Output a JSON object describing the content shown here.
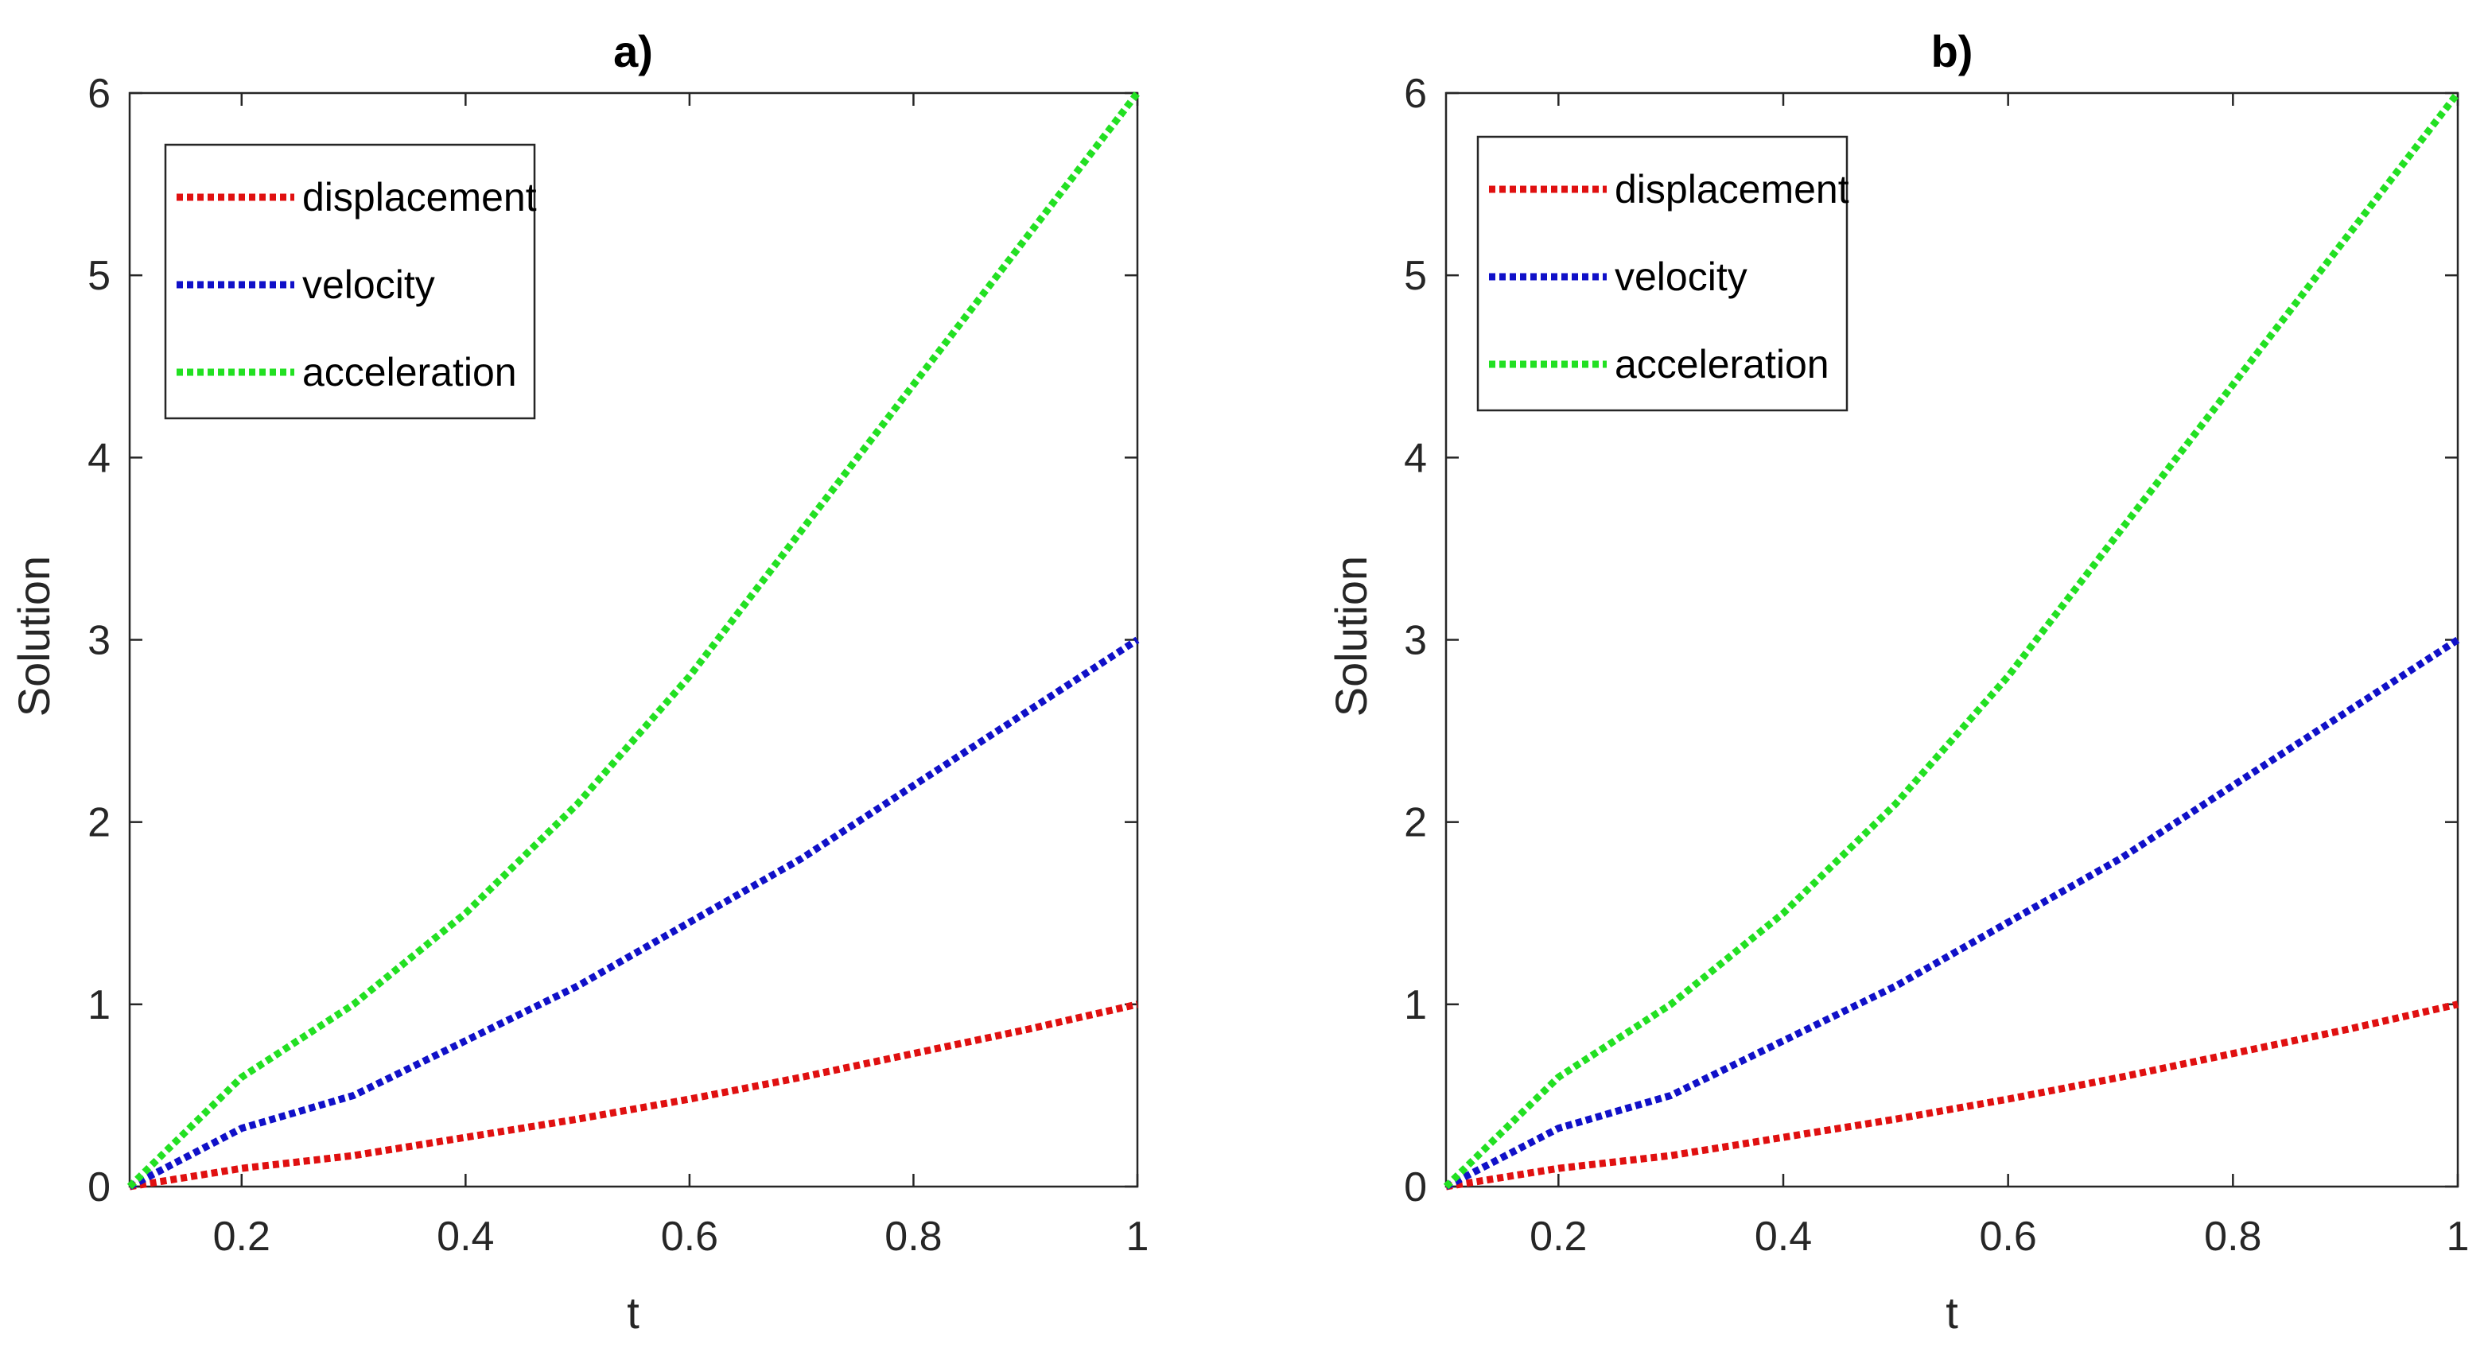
{
  "chart_data": [
    {
      "type": "line",
      "title": "a)",
      "xlabel": "t",
      "ylabel": "Solution",
      "xlim": [
        0.1,
        1
      ],
      "ylim": [
        0,
        6
      ],
      "xticks": [
        0.2,
        0.4,
        0.6,
        0.8,
        1
      ],
      "xtick_labels": [
        "0.2",
        "0.4",
        "0.6",
        "0.8",
        "1"
      ],
      "yticks": [
        0,
        1,
        2,
        3,
        4,
        5,
        6
      ],
      "ytick_labels": [
        "0",
        "1",
        "2",
        "3",
        "4",
        "5",
        "6"
      ],
      "grid": false,
      "legend_position": "top-left",
      "x": [
        0.1,
        0.2,
        0.3,
        0.4,
        0.5,
        0.6,
        0.7,
        0.8,
        0.9,
        1.0
      ],
      "series": [
        {
          "name": "displacement",
          "color": "#e01010",
          "values": [
            0.0,
            0.1,
            0.17,
            0.27,
            0.37,
            0.48,
            0.6,
            0.73,
            0.86,
            1.0
          ]
        },
        {
          "name": "velocity",
          "color": "#1010c8",
          "values": [
            0.0,
            0.32,
            0.5,
            0.8,
            1.1,
            1.45,
            1.8,
            2.2,
            2.6,
            3.0
          ]
        },
        {
          "name": "acceleration",
          "color": "#22e022",
          "values": [
            0.0,
            0.6,
            1.0,
            1.5,
            2.1,
            2.8,
            3.6,
            4.4,
            5.2,
            6.0
          ]
        }
      ]
    },
    {
      "type": "line",
      "title": "b)",
      "xlabel": "t",
      "ylabel": "Solution",
      "xlim": [
        0.1,
        1
      ],
      "ylim": [
        0,
        6
      ],
      "xticks": [
        0.2,
        0.4,
        0.6,
        0.8,
        1
      ],
      "xtick_labels": [
        "0.2",
        "0.4",
        "0.6",
        "0.8",
        "1"
      ],
      "yticks": [
        0,
        1,
        2,
        3,
        4,
        5,
        6
      ],
      "ytick_labels": [
        "0",
        "1",
        "2",
        "3",
        "4",
        "5",
        "6"
      ],
      "grid": false,
      "legend_position": "top-left",
      "x": [
        0.1,
        0.2,
        0.3,
        0.4,
        0.5,
        0.6,
        0.7,
        0.8,
        0.9,
        1.0
      ],
      "series": [
        {
          "name": "displacement",
          "color": "#e01010",
          "values": [
            0.0,
            0.1,
            0.17,
            0.27,
            0.37,
            0.48,
            0.6,
            0.73,
            0.86,
            1.0
          ]
        },
        {
          "name": "velocity",
          "color": "#1010c8",
          "values": [
            0.0,
            0.32,
            0.5,
            0.8,
            1.1,
            1.45,
            1.8,
            2.2,
            2.6,
            3.0
          ]
        },
        {
          "name": "acceleration",
          "color": "#22e022",
          "values": [
            0.0,
            0.6,
            1.0,
            1.5,
            2.1,
            2.8,
            3.6,
            4.4,
            5.2,
            6.0
          ]
        }
      ]
    }
  ]
}
